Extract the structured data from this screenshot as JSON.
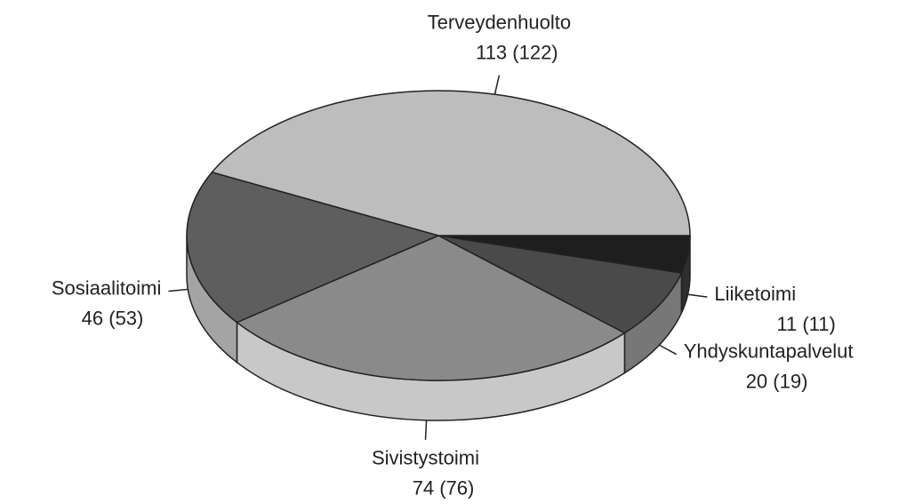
{
  "chart_data": {
    "type": "pie",
    "categories": [
      "Liiketoimi",
      "Yhdyskuntapalvelut",
      "Sivistystoimi",
      "Sosiaalitoimi",
      "Terveydenhuolto"
    ],
    "values": [
      11,
      20,
      74,
      46,
      113
    ],
    "value_labels": [
      "11 (11)",
      "20 (19)",
      "74 (76)",
      "46 (53)",
      "113 (122)"
    ],
    "colors": [
      "#1e1e1e",
      "#4a4a4a",
      "#8a8a8a",
      "#5e5e5e",
      "#bdbdbd"
    ],
    "side_colors": [
      "#2e2e2e",
      "#777777",
      "#c8c8c8",
      "#a4a4a4",
      "#d6d6d6"
    ]
  }
}
